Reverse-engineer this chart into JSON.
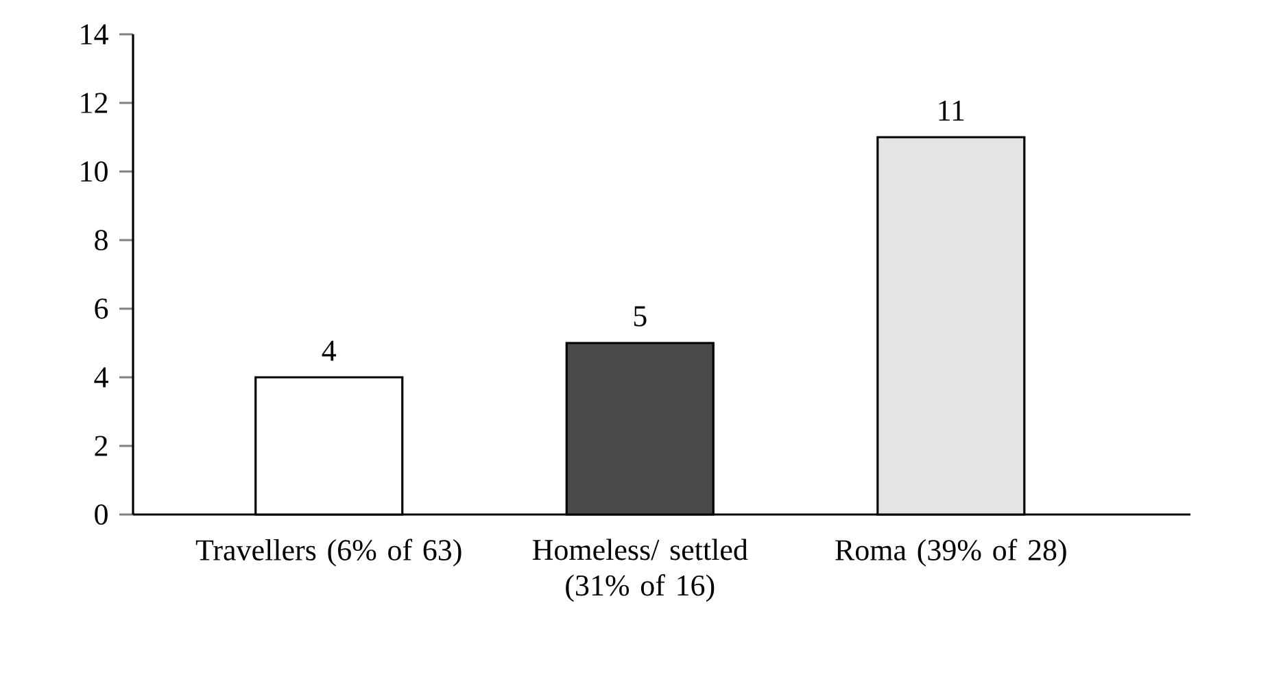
{
  "chart_data": {
    "type": "bar",
    "categories": [
      "Travellers (6% of 63)",
      "Homeless/ settled (31% of 16)",
      "Roma (39% of 28)"
    ],
    "values": [
      4,
      5,
      11
    ],
    "colors": [
      "#ffffff",
      "#4a4a4a",
      "#e4e4e4"
    ],
    "ylim": [
      0,
      14
    ],
    "yticks": [
      0,
      2,
      4,
      6,
      8,
      10,
      12,
      14
    ],
    "data_labels": true,
    "grid": false
  }
}
